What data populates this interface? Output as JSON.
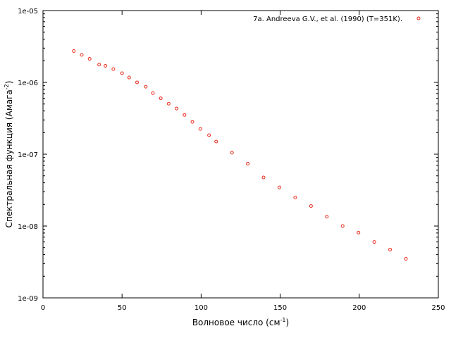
{
  "chart_data": {
    "type": "scatter",
    "title": "",
    "xlabel": "Волновое число (см",
    "xlabel_sup": "-1",
    "xlabel_end": ")",
    "ylabel": "Спектральная функция (Амага",
    "ylabel_sup": "-2",
    "ylabel_end": ")",
    "xlim": [
      0,
      250
    ],
    "ylim": [
      1e-09,
      1e-05
    ],
    "yscale": "log",
    "grid": false,
    "legend_position": "top-right",
    "x_ticks": [
      0,
      50,
      100,
      150,
      200,
      250
    ],
    "x_tick_labels": [
      "0",
      "50",
      "100",
      "150",
      "200",
      "250"
    ],
    "y_ticks": [
      1e-09,
      1e-08,
      1e-07,
      1e-06,
      1e-05
    ],
    "y_tick_labels": [
      "1e-09",
      "1e-08",
      "1e-07",
      "1e-06",
      "1e-05"
    ],
    "series": [
      {
        "name": "7a. Andreeva G.V., et al. (1990) (T=351K).",
        "color": "#e8291c",
        "marker": "open-circle",
        "x": [
          19.5,
          24.5,
          29.5,
          35.5,
          39.5,
          44.5,
          50,
          54.5,
          59.5,
          65,
          69.5,
          74.5,
          79.5,
          84.5,
          89.5,
          94.5,
          99.5,
          105,
          109.5,
          119.5,
          129.5,
          139.5,
          149.5,
          159.5,
          169.5,
          179.5,
          189.5,
          199.5,
          209.5,
          219.5,
          229.5
        ],
        "y": [
          2.73e-06,
          2.42e-06,
          2.13e-06,
          1.77e-06,
          1.7e-06,
          1.53e-06,
          1.34e-06,
          1.17e-06,
          1e-06,
          8.7e-07,
          7.1e-07,
          6e-07,
          5.05e-07,
          4.33e-07,
          3.52e-07,
          2.82e-07,
          2.25e-07,
          1.84e-07,
          1.5e-07,
          1.05e-07,
          7.4e-08,
          4.75e-08,
          3.45e-08,
          2.5e-08,
          1.9e-08,
          1.35e-08,
          1e-08,
          8.1e-09,
          6e-09,
          4.7e-09,
          3.5e-09
        ]
      }
    ]
  }
}
